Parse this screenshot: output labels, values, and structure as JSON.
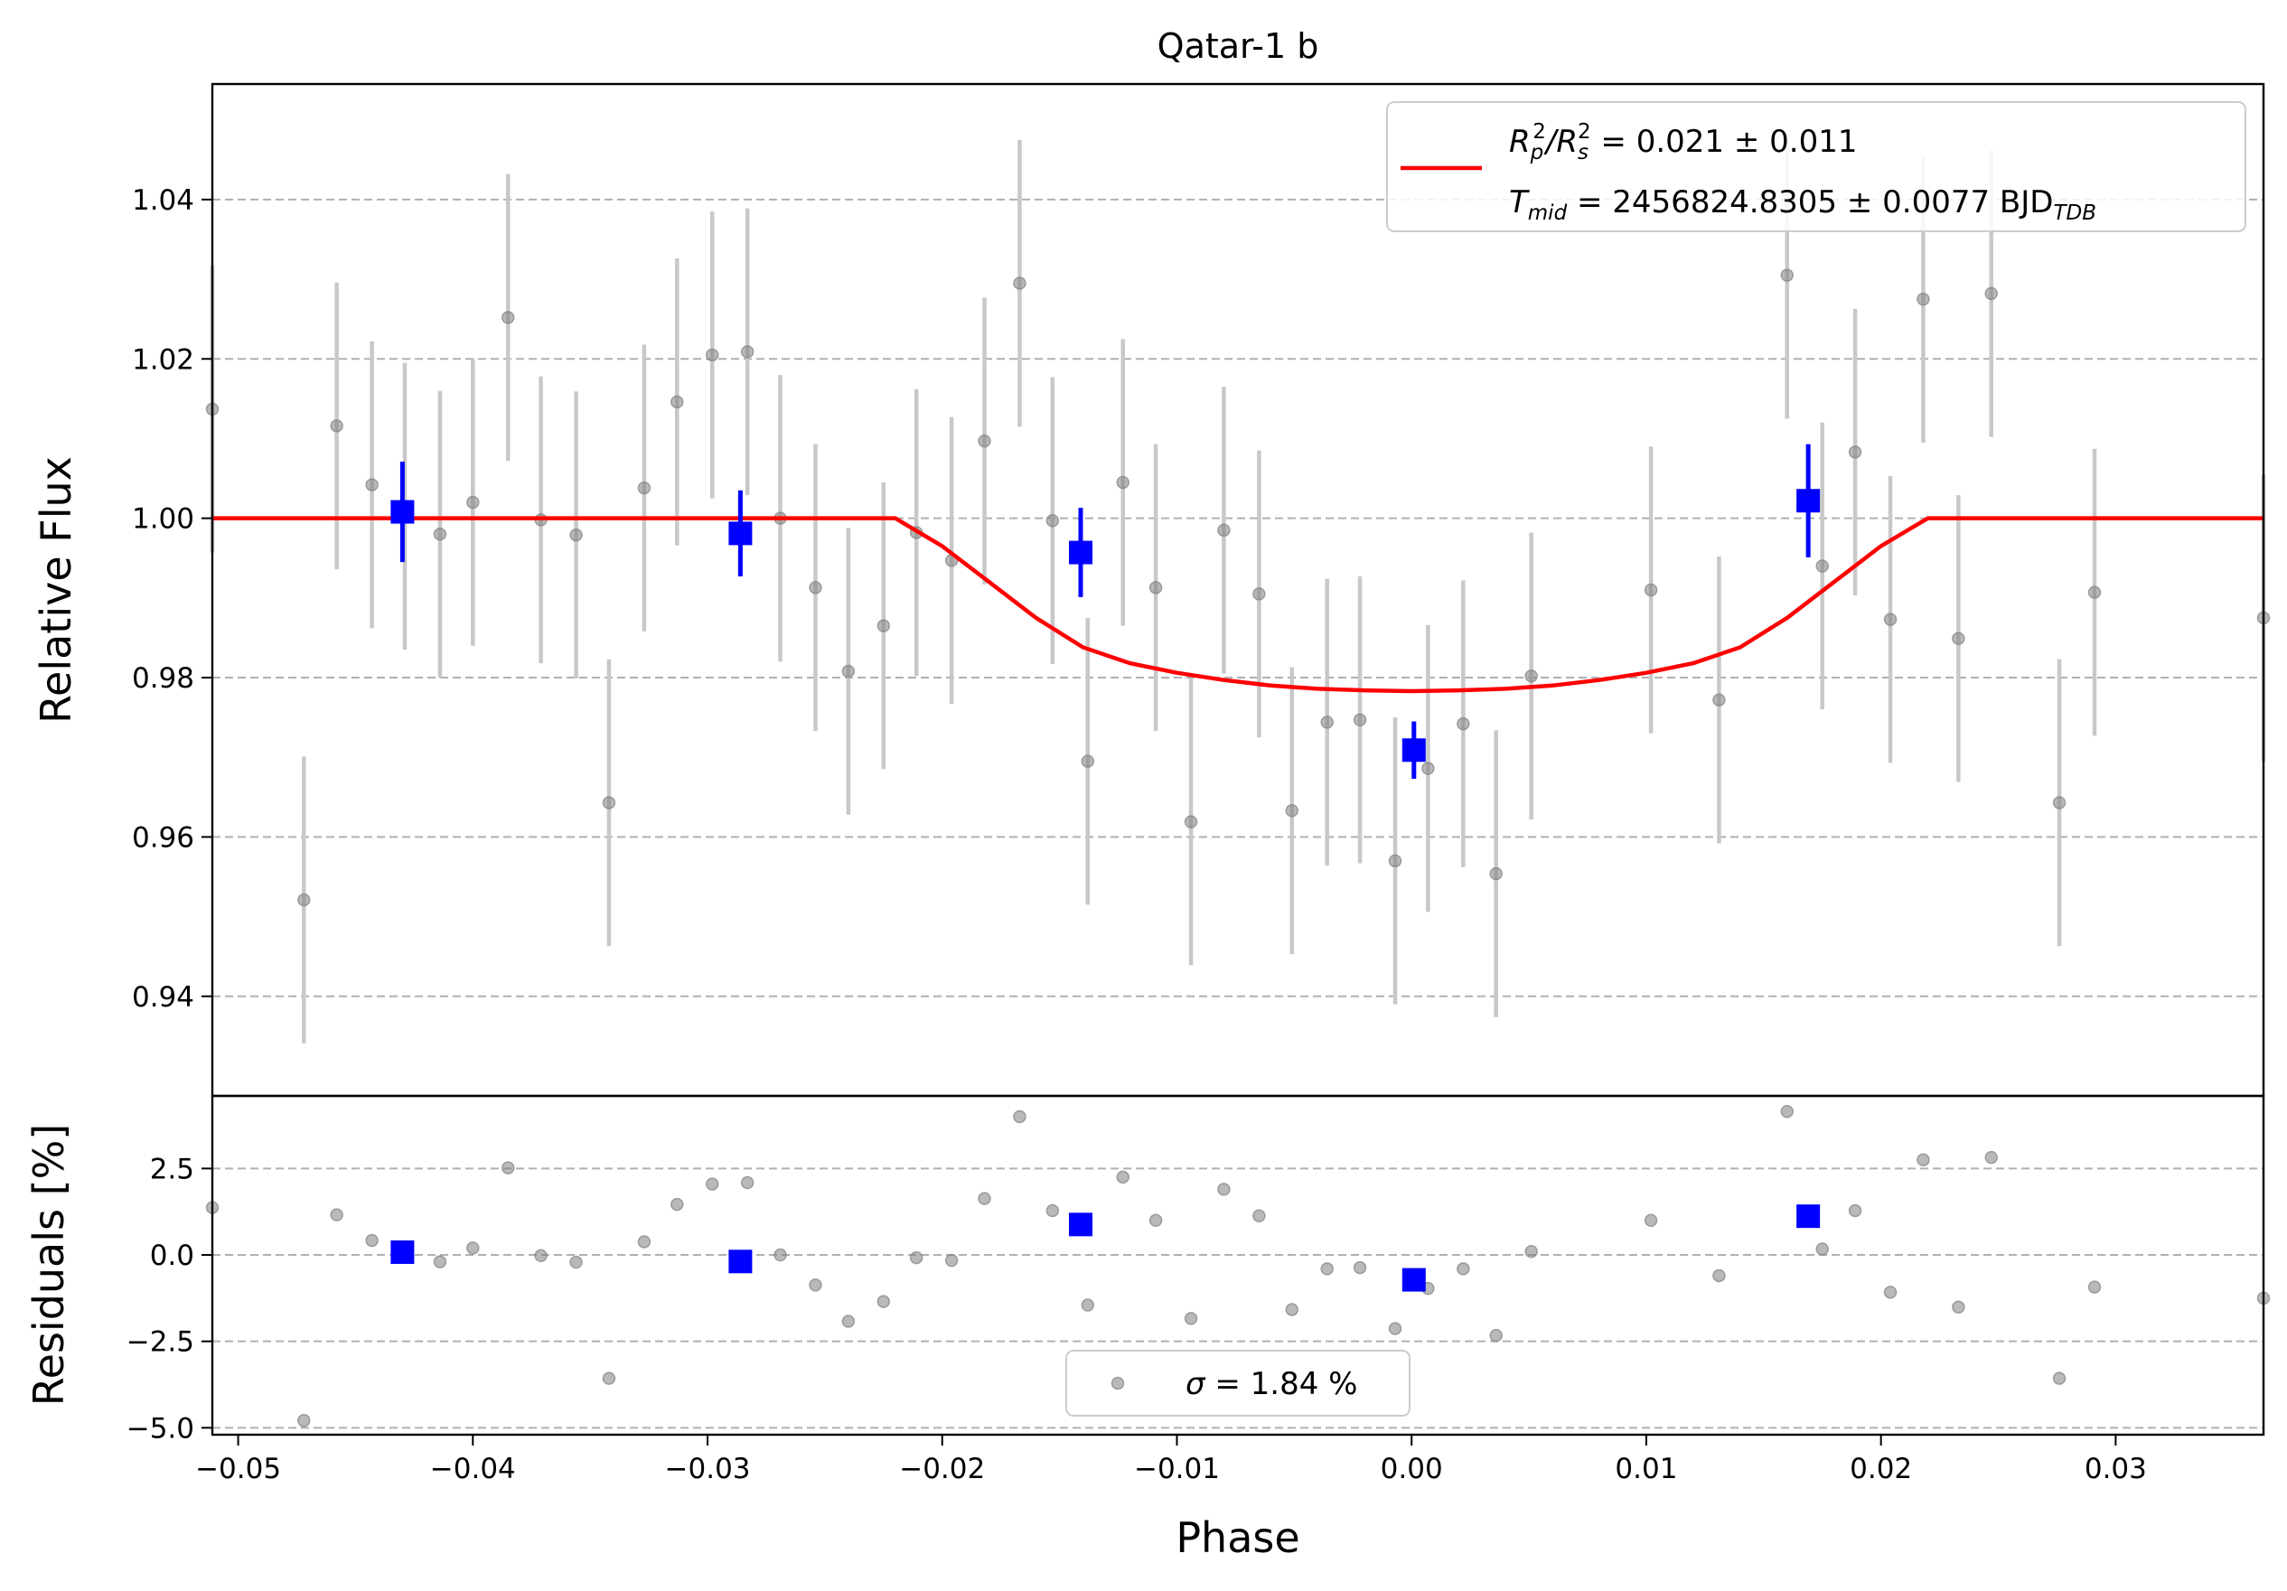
{
  "chart_data": {
    "type": "scatter",
    "title": "Qatar-1 b",
    "xlabel": "Phase",
    "top_panel": {
      "ylabel": "Relative Flux",
      "ylim": [
        0.9275,
        1.0545
      ],
      "yticks": [
        0.94,
        0.96,
        0.98,
        1.0,
        1.02,
        1.04
      ],
      "ytick_labels": [
        "0.94",
        "0.96",
        "0.98",
        "1.00",
        "1.02",
        "1.04"
      ],
      "grid": "horizontal dashed",
      "legend_placement": "top-right",
      "legend": {
        "line1": {
          "lhs": "R",
          "sub1": "p",
          "sup1": "2",
          "slash": "/R",
          "sub2": "s",
          "sup2": "2",
          "rhs": " = 0.021 ± 0.011"
        },
        "line2": {
          "lhs": "T",
          "sub1": "mid",
          "rhs": " = 2456824.8305 ± 0.0077 BJD",
          "sub2": "TDB"
        }
      }
    },
    "bottom_panel": {
      "ylabel": "Residuals [%]",
      "ylim": [
        -5.2,
        4.6
      ],
      "yticks": [
        -5.0,
        -2.5,
        0.0,
        2.5
      ],
      "ytick_labels": [
        "−5.0",
        "−2.5",
        "0.0",
        "2.5"
      ],
      "grid": "horizontal dashed",
      "legend_placement": "bottom-center",
      "legend": {
        "sigma": "σ",
        "text": " = 1.84 %"
      }
    },
    "xlim": [
      -0.0511,
      0.0363
    ],
    "xticks": [
      -0.05,
      -0.04,
      -0.03,
      -0.02,
      -0.01,
      0.0,
      0.01,
      0.02,
      0.03
    ],
    "xtick_labels": [
      "−0.05",
      "−0.04",
      "−0.03",
      "−0.02",
      "−0.01",
      "0.00",
      "0.01",
      "0.02",
      "0.03"
    ],
    "colors": {
      "raw": "#808080",
      "raw_err": "#c8c8c8",
      "binned": "#0000ff",
      "model": "#ff0000",
      "grid": "#b0b0b0"
    },
    "raw_points": [
      {
        "x": -0.0511,
        "y": 1.0137,
        "err": 0.018,
        "res": 1.37
      },
      {
        "x": -0.0472,
        "y": 0.9521,
        "err": 0.018,
        "res": -4.79
      },
      {
        "x": -0.0458,
        "y": 1.0116,
        "err": 0.018,
        "res": 1.16
      },
      {
        "x": -0.0443,
        "y": 1.0042,
        "err": 0.018,
        "res": 0.42
      },
      {
        "x": -0.0429,
        "y": 1.0015,
        "err": 0.018,
        "res": 0.15
      },
      {
        "x": -0.0414,
        "y": 0.998,
        "err": 0.018,
        "res": -0.2
      },
      {
        "x": -0.04,
        "y": 1.002,
        "err": 0.018,
        "res": 0.2
      },
      {
        "x": -0.0385,
        "y": 1.0252,
        "err": 0.018,
        "res": 2.52
      },
      {
        "x": -0.0371,
        "y": 0.9998,
        "err": 0.018,
        "res": -0.02
      },
      {
        "x": -0.0356,
        "y": 0.9979,
        "err": 0.018,
        "res": -0.21
      },
      {
        "x": -0.0342,
        "y": 0.9643,
        "err": 0.018,
        "res": -3.57
      },
      {
        "x": -0.0327,
        "y": 1.0038,
        "err": 0.018,
        "res": 0.38
      },
      {
        "x": -0.0313,
        "y": 1.0146,
        "err": 0.018,
        "res": 1.46
      },
      {
        "x": -0.0298,
        "y": 1.0205,
        "err": 0.018,
        "res": 2.05
      },
      {
        "x": -0.0283,
        "y": 1.0209,
        "err": 0.018,
        "res": 2.09
      },
      {
        "x": -0.0269,
        "y": 1.0,
        "err": 0.018,
        "res": 0.0
      },
      {
        "x": -0.0254,
        "y": 0.9913,
        "err": 0.018,
        "res": -0.87
      },
      {
        "x": -0.024,
        "y": 0.9808,
        "err": 0.018,
        "res": -1.92
      },
      {
        "x": -0.0225,
        "y": 0.9865,
        "err": 0.018,
        "res": -1.35
      },
      {
        "x": -0.0211,
        "y": 0.9982,
        "err": 0.018,
        "res": -0.08
      },
      {
        "x": -0.0196,
        "y": 0.9947,
        "err": 0.018,
        "res": -0.16
      },
      {
        "x": -0.0182,
        "y": 1.0097,
        "err": 0.018,
        "res": 1.63
      },
      {
        "x": -0.0167,
        "y": 1.0295,
        "err": 0.018,
        "res": 4.0
      },
      {
        "x": -0.0153,
        "y": 0.9997,
        "err": 0.018,
        "res": 1.28
      },
      {
        "x": -0.0138,
        "y": 0.9695,
        "err": 0.018,
        "res": -1.45
      },
      {
        "x": -0.0123,
        "y": 1.0045,
        "err": 0.018,
        "res": 2.25
      },
      {
        "x": -0.0109,
        "y": 0.9913,
        "err": 0.018,
        "res": 1.0
      },
      {
        "x": -0.0094,
        "y": 0.9619,
        "err": 0.018,
        "res": -1.84
      },
      {
        "x": -0.008,
        "y": 0.9985,
        "err": 0.018,
        "res": 1.9
      },
      {
        "x": -0.0065,
        "y": 0.9905,
        "err": 0.018,
        "res": 1.13
      },
      {
        "x": -0.0051,
        "y": 0.9633,
        "err": 0.018,
        "res": -1.58
      },
      {
        "x": -0.0036,
        "y": 0.9744,
        "err": 0.018,
        "res": -0.4
      },
      {
        "x": -0.0022,
        "y": 0.9747,
        "err": 0.018,
        "res": -0.37
      },
      {
        "x": -0.0007,
        "y": 0.957,
        "err": 0.018,
        "res": -2.13
      },
      {
        "x": 0.0007,
        "y": 0.9686,
        "err": 0.018,
        "res": -0.97
      },
      {
        "x": 0.0022,
        "y": 0.9742,
        "err": 0.018,
        "res": -0.4
      },
      {
        "x": 0.0036,
        "y": 0.9554,
        "err": 0.018,
        "res": -2.33
      },
      {
        "x": 0.0051,
        "y": 0.9802,
        "err": 0.018,
        "res": 0.1
      },
      {
        "x": 0.0102,
        "y": 0.991,
        "err": 0.018,
        "res": 1.0
      },
      {
        "x": 0.0131,
        "y": 0.9772,
        "err": 0.018,
        "res": -0.6
      },
      {
        "x": 0.016,
        "y": 1.0305,
        "err": 0.018,
        "res": 4.15
      },
      {
        "x": 0.0175,
        "y": 0.994,
        "err": 0.018,
        "res": 0.17
      },
      {
        "x": 0.0189,
        "y": 1.0083,
        "err": 0.018,
        "res": 1.28
      },
      {
        "x": 0.0204,
        "y": 0.9873,
        "err": 0.018,
        "res": -1.08
      },
      {
        "x": 0.0218,
        "y": 1.0275,
        "err": 0.018,
        "res": 2.75
      },
      {
        "x": 0.0233,
        "y": 0.9849,
        "err": 0.018,
        "res": -1.51
      },
      {
        "x": 0.0247,
        "y": 1.0282,
        "err": 0.018,
        "res": 2.82
      },
      {
        "x": 0.0276,
        "y": 0.9643,
        "err": 0.018,
        "res": -3.57
      },
      {
        "x": 0.0291,
        "y": 0.9907,
        "err": 0.018,
        "res": -0.93
      },
      {
        "x": 0.0363,
        "y": 0.9875,
        "err": 0.018,
        "res": -1.25
      }
    ],
    "binned_points": [
      {
        "x": -0.043,
        "y": 1.0008,
        "err": 0.0063,
        "res": 0.08
      },
      {
        "x": -0.0286,
        "y": 0.9981,
        "err": 0.0054,
        "res": -0.19
      },
      {
        "x": -0.0141,
        "y": 0.9957,
        "err": 0.0056,
        "res": 0.88
      },
      {
        "x": 0.0001,
        "y": 0.9709,
        "err": 0.0036,
        "res": -0.72
      },
      {
        "x": 0.0169,
        "y": 1.0022,
        "err": 0.0071,
        "res": 1.12
      }
    ],
    "model_curve": {
      "x": [
        -0.0511,
        -0.022,
        -0.02,
        -0.018,
        -0.016,
        -0.014,
        -0.012,
        -0.01,
        -0.008,
        -0.006,
        -0.004,
        -0.002,
        0.0,
        0.002,
        0.004,
        0.006,
        0.008,
        0.01,
        0.012,
        0.014,
        0.016,
        0.018,
        0.02,
        0.022,
        0.0363
      ],
      "y": [
        1.0,
        1.0,
        0.9965,
        0.992,
        0.9875,
        0.9838,
        0.9818,
        0.9806,
        0.9797,
        0.979,
        0.9786,
        0.9784,
        0.9783,
        0.9784,
        0.9786,
        0.979,
        0.9797,
        0.9806,
        0.9818,
        0.9838,
        0.9875,
        0.992,
        0.9965,
        1.0,
        1.0
      ]
    }
  }
}
